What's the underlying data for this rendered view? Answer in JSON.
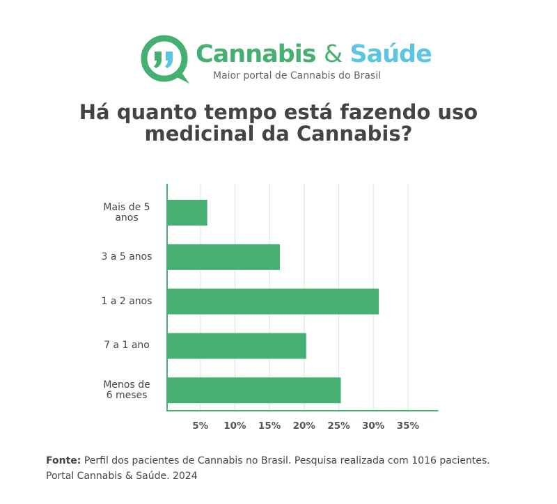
{
  "brand": {
    "name_part1": "Cannabis",
    "amp": "&",
    "name_part2": "Saúde",
    "tagline": "Maior portal de Cannabis do Brasil",
    "colors": {
      "green": "#45b072",
      "blue": "#5bc5e3"
    }
  },
  "title_line1": "Há quanto tempo está fazendo uso",
  "title_line2": "medicinal da Cannabis?",
  "chart_data": {
    "type": "bar",
    "orientation": "horizontal",
    "title": "Há quanto tempo está fazendo uso medicinal da Cannabis?",
    "categories": [
      "Mais de  5 anos",
      "3 a 5 anos",
      "1 a 2 anos",
      "7 a 1 ano",
      "Menos de 6 meses"
    ],
    "category_lines": [
      [
        "Mais de  5",
        "anos"
      ],
      [
        "3 a 5 anos"
      ],
      [
        "1 a 2 anos"
      ],
      [
        "7 a 1 ano"
      ],
      [
        "Menos de",
        "6 meses"
      ]
    ],
    "values": [
      6,
      16.5,
      30.8,
      20.3,
      25.3
    ],
    "xticks": [
      "5%",
      "10%",
      "15%",
      "20%",
      "25%",
      "30%",
      "35%"
    ],
    "xtick_values": [
      5,
      10,
      15,
      20,
      25,
      30,
      35
    ],
    "xlim": [
      0,
      40
    ],
    "grid": true,
    "bar_color": "#45b072",
    "grid_color": "#d6ece0"
  },
  "source": {
    "label": "Fonte:",
    "text": " Perfil dos pacientes de Cannabis no Brasil. Pesquisa realizada com 1016 pacientes.",
    "line2": "Portal Cannabis & Saúde. 2024"
  }
}
